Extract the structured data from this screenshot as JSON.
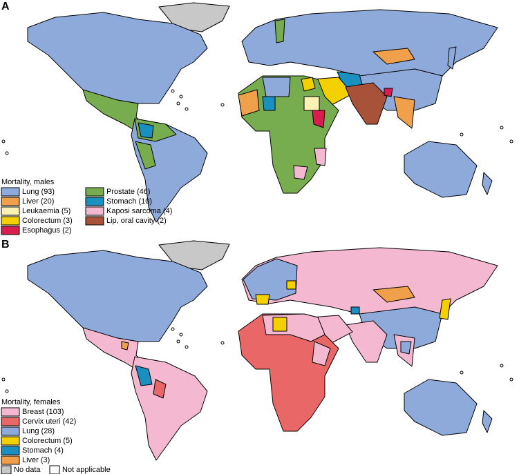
{
  "panels": [
    {
      "label": "A",
      "legend": {
        "title": "Mortality, males",
        "items": [
          {
            "label": "Lung (93)",
            "color": "#8eaadb"
          },
          {
            "label": "Liver (20)",
            "color": "#f0a04b"
          },
          {
            "label": "Leukaemia (5)",
            "color": "#fbf1b4"
          },
          {
            "label": "Colorectum (3)",
            "color": "#f5d000"
          },
          {
            "label": "Esophagus (2)",
            "color": "#d81e4e"
          },
          {
            "label": "Prostate (46)",
            "color": "#77ad4e"
          },
          {
            "label": "Stomach (10)",
            "color": "#1a90c0"
          },
          {
            "label": "Kaposi sarcoma (4)",
            "color": "#f4b9d1"
          },
          {
            "label": "Lip, oral cavity (2)",
            "color": "#a8523a"
          }
        ]
      }
    },
    {
      "label": "B",
      "legend": {
        "title": "Mortality, females",
        "items": [
          {
            "label": "Breast (103)",
            "color": "#f4b9d1"
          },
          {
            "label": "Cervix uteri (42)",
            "color": "#ea6767"
          },
          {
            "label": "Lung (28)",
            "color": "#8eaadb"
          },
          {
            "label": "Colorectum (5)",
            "color": "#f5d000"
          },
          {
            "label": "Stomach (4)",
            "color": "#1a90c0"
          },
          {
            "label": "Liver (3)",
            "color": "#f0a04b"
          }
        ]
      }
    }
  ],
  "footer_legend": [
    {
      "label": "No data",
      "color": "#c8c8c8"
    },
    {
      "label": "Not applicable",
      "color": "#ffffff"
    }
  ]
}
